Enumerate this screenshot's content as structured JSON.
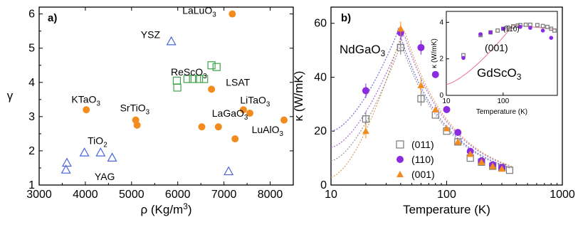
{
  "colors": {
    "orange": "#f28c1e",
    "green": "#3fa34a",
    "blue": "#4a63d9",
    "purple": "#8a2be2",
    "gray": "#777777",
    "pink": "#e8718d",
    "fit_blue": "#6b6bdc",
    "fit_purple": "#a46ad8",
    "fit_orange": "#e0a050",
    "fit_gray": "#999999"
  },
  "chart_data": [
    {
      "type": "scatter",
      "panel_label": "a)",
      "xlabel": "ρ (Kg/m³)",
      "ylabel": "γ",
      "xlim": [
        3000,
        8500
      ],
      "ylim": [
        1,
        6.2
      ],
      "xticks": [
        "3000",
        "4000",
        "5000",
        "6000",
        "7000",
        "8000"
      ],
      "yticks": [
        "1",
        "2",
        "3",
        "4",
        "5",
        "6"
      ],
      "series": [
        {
          "marker": "orange-circle",
          "x": [
            4020,
            5090,
            5120,
            6520,
            6880,
            6730,
            7180,
            7420,
            7560,
            7240,
            8300
          ],
          "y": [
            3.2,
            2.9,
            2.75,
            2.7,
            2.7,
            3.8,
            6.0,
            3.2,
            3.1,
            2.35,
            2.9
          ]
        },
        {
          "marker": "green-square",
          "x": [
            5980,
            5990,
            6210,
            6330,
            6460,
            6570,
            6730,
            6840
          ],
          "y": [
            4.05,
            3.85,
            4.1,
            4.1,
            4.1,
            4.1,
            4.5,
            4.45
          ]
        },
        {
          "marker": "blue-triangle",
          "x": [
            3600,
            3580,
            3980,
            4330,
            4580,
            5860,
            7100
          ],
          "y": [
            1.65,
            1.45,
            1.95,
            1.95,
            1.8,
            5.2,
            1.4
          ]
        }
      ],
      "annotations": [
        {
          "text": "LaLuO",
          "sub": "3",
          "x": 6100,
          "y": 6.0
        },
        {
          "text": "YSZ",
          "sub": "",
          "x": 5200,
          "y": 5.3
        },
        {
          "text": "ReScO",
          "sub": "3",
          "x": 5850,
          "y": 4.2
        },
        {
          "text": "LSAT",
          "sub": "",
          "x": 7040,
          "y": 3.9
        },
        {
          "text": "KTaO",
          "sub": "3",
          "x": 3700,
          "y": 3.4
        },
        {
          "text": "SrTiO",
          "sub": "3",
          "x": 4750,
          "y": 3.15
        },
        {
          "text": "LiTaO",
          "sub": "3",
          "x": 7350,
          "y": 3.38
        },
        {
          "text": "LaGaO",
          "sub": "3",
          "x": 6740,
          "y": 3.0
        },
        {
          "text": "LuAlO",
          "sub": "3",
          "x": 7600,
          "y": 2.52
        },
        {
          "text": "TiO",
          "sub": "2",
          "x": 4050,
          "y": 2.2
        },
        {
          "text": "YAG",
          "sub": "",
          "x": 4200,
          "y": 1.15
        }
      ]
    },
    {
      "type": "scatter",
      "panel_label": "b)",
      "xlabel": "Temperature (K)",
      "ylabel": "κ (W/mK)",
      "xscale": "log",
      "xlim": [
        10,
        1000
      ],
      "ylim": [
        0,
        66
      ],
      "xticks": [
        "10",
        "100",
        "1000"
      ],
      "yticks": [
        "0",
        "20",
        "40",
        "60"
      ],
      "annotation": {
        "text": "NdGaO",
        "sub": "3"
      },
      "series": [
        {
          "name": "(011)",
          "marker": "gray-open-square",
          "x": [
            20,
            40,
            60,
            80,
            100,
            125,
            160,
            200,
            250,
            300,
            350
          ],
          "y": [
            24.5,
            51,
            32,
            26,
            20,
            16,
            10,
            8.5,
            7,
            6.5,
            5.5
          ]
        },
        {
          "name": "(110)",
          "marker": "purple-circle",
          "x": [
            20,
            40,
            60,
            80,
            100,
            125,
            160,
            200,
            250,
            300
          ],
          "y": [
            35,
            56.5,
            51,
            41,
            28,
            19.5,
            12.5,
            9,
            7.5,
            6.5
          ]
        },
        {
          "name": "(001)",
          "marker": "orange-triangle",
          "x": [
            20,
            40,
            60,
            80,
            100,
            125,
            160,
            200,
            250,
            300
          ],
          "y": [
            20,
            58,
            37,
            28,
            21,
            16,
            11.5,
            8.5,
            7,
            6
          ]
        }
      ]
    },
    {
      "type": "scatter",
      "inset": true,
      "xlabel": "Temperature (K)",
      "ylabel": "κ (W/mK)",
      "xscale": "log",
      "xlim": [
        10,
        900
      ],
      "ylim": [
        0,
        4.6
      ],
      "xticks": [
        "10",
        "100"
      ],
      "yticks": [
        "0",
        "2",
        "4"
      ],
      "annotation": {
        "text": "GdScO",
        "sub": "3"
      },
      "labels": [
        "(110)",
        "(001)"
      ],
      "series": [
        {
          "name": "(110)",
          "marker": "gray-open-square",
          "x": [
            20,
            40,
            60,
            80,
            100,
            120,
            150,
            180,
            200,
            250,
            300,
            400,
            500,
            600,
            700,
            800
          ],
          "y": [
            2.2,
            3.3,
            3.45,
            3.55,
            3.65,
            3.72,
            3.78,
            3.82,
            3.85,
            3.87,
            3.87,
            3.85,
            3.8,
            3.75,
            3.65,
            3.55
          ]
        },
        {
          "name": "(001)",
          "marker": "purple-circle",
          "x": [
            20,
            40,
            60,
            100,
            200,
            300,
            500,
            700
          ],
          "y": [
            2.05,
            3.35,
            3.45,
            3.65,
            3.75,
            3.7,
            3.55,
            3.15
          ]
        }
      ]
    }
  ]
}
